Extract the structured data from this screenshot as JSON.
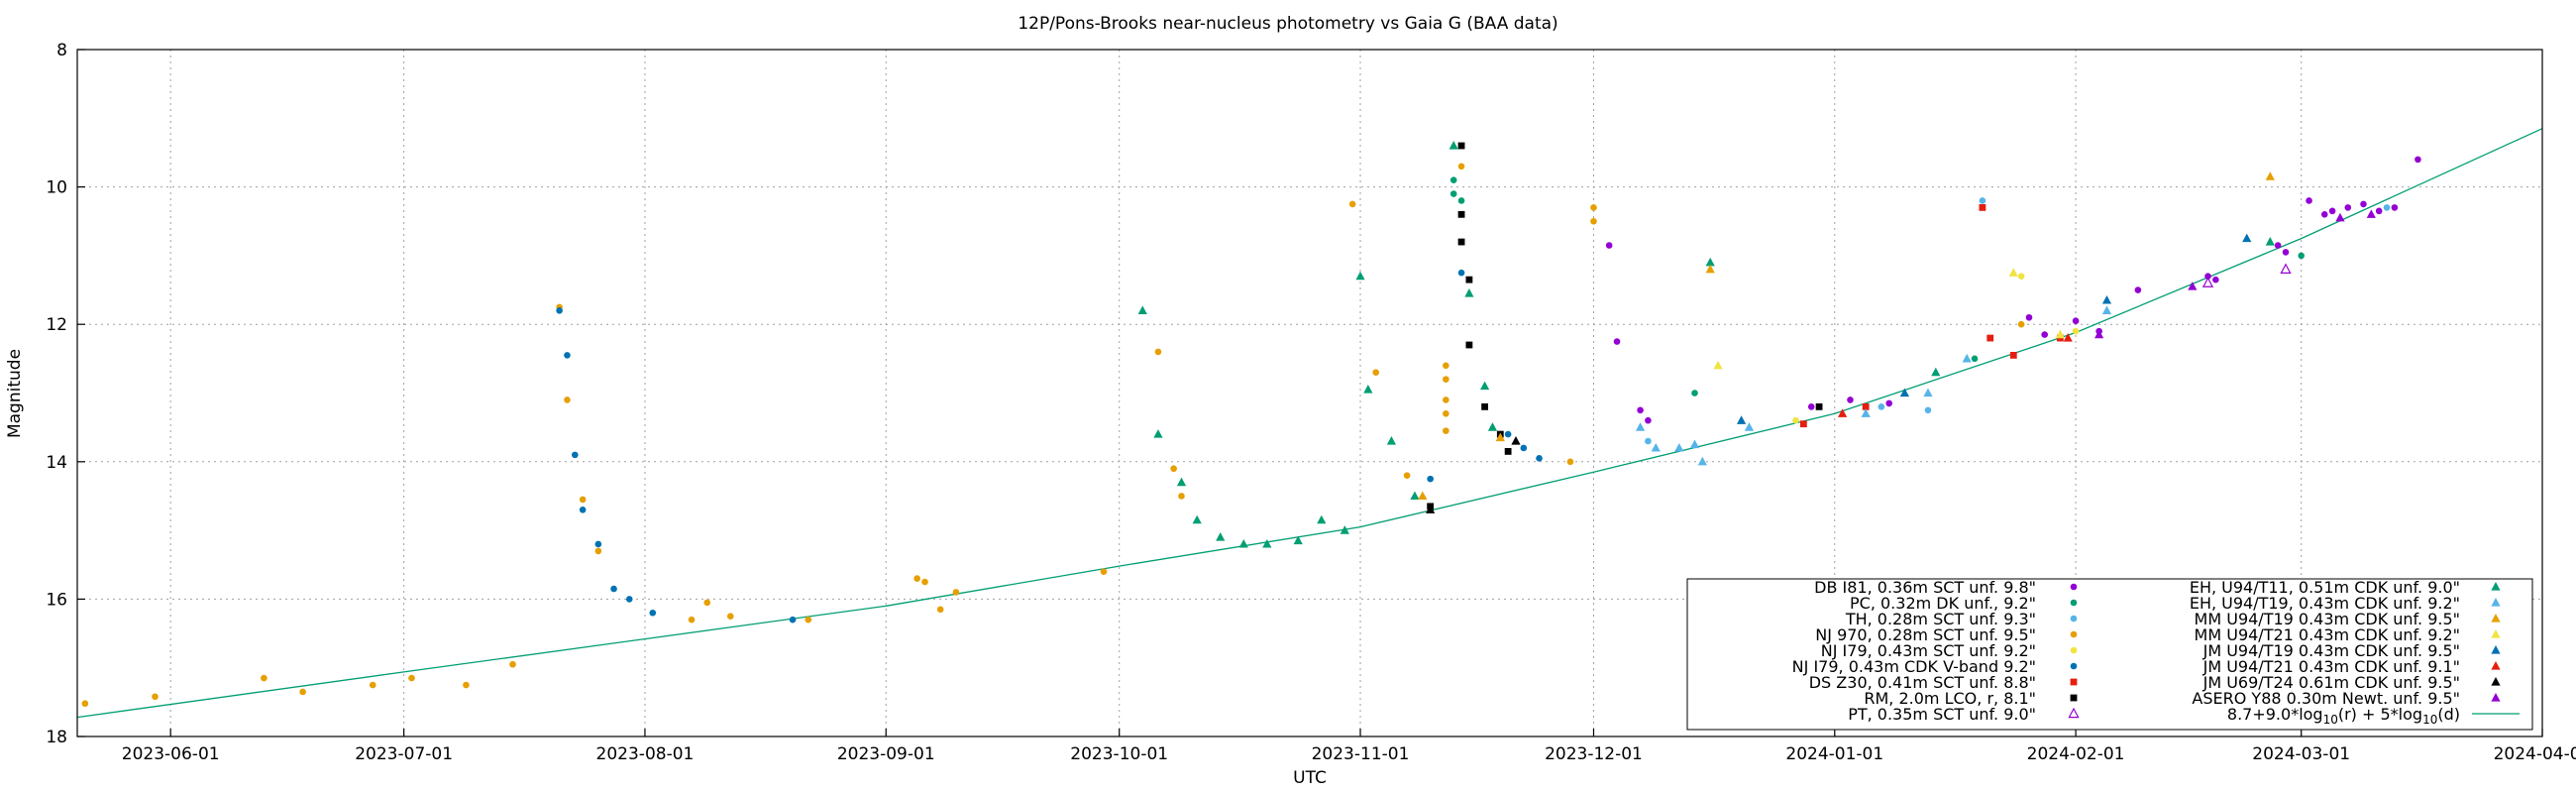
{
  "chart_data": {
    "type": "scatter",
    "title": "12P/Pons-Brooks near-nucleus photometry vs Gaia G (BAA data)",
    "xlabel": "UTC",
    "ylabel": "Magnitude",
    "xlim": [
      "2023-05-20",
      "2024-04-01"
    ],
    "ylim": [
      8,
      18
    ],
    "y_inverted": true,
    "grid": true,
    "legend_position": "bottom-right",
    "x_ticks": [
      {
        "date": "2023-06-01",
        "label": "2023-06-01"
      },
      {
        "date": "2023-07-01",
        "label": "2023-07-01"
      },
      {
        "date": "2023-08-01",
        "label": "2023-08-01"
      },
      {
        "date": "2023-09-01",
        "label": "2023-09-01"
      },
      {
        "date": "2023-10-01",
        "label": "2023-10-01"
      },
      {
        "date": "2023-11-01",
        "label": "2023-11-01"
      },
      {
        "date": "2023-12-01",
        "label": "2023-12-01"
      },
      {
        "date": "2024-01-01",
        "label": "2024-01-01"
      },
      {
        "date": "2024-02-01",
        "label": "2024-02-01"
      },
      {
        "date": "2024-03-01",
        "label": "2024-03-01"
      },
      {
        "date": "2024-04-01",
        "label": "2024-04-01"
      }
    ],
    "y_ticks": [
      8,
      10,
      12,
      14,
      16,
      18
    ],
    "model_curve": {
      "name": "8.7+9.0*log10(r) + 5*log10(d)",
      "color": "#009e73",
      "points": [
        [
          "2023-05-20",
          17.72
        ],
        [
          "2023-07-01",
          17.06
        ],
        [
          "2023-08-01",
          16.58
        ],
        [
          "2023-09-01",
          16.1
        ],
        [
          "2023-10-01",
          15.52
        ],
        [
          "2023-11-01",
          14.95
        ],
        [
          "2023-12-01",
          14.15
        ],
        [
          "2024-01-01",
          13.3
        ],
        [
          "2024-02-01",
          12.12
        ],
        [
          "2024-03-01",
          10.75
        ],
        [
          "2024-04-01",
          9.15
        ]
      ]
    },
    "series": [
      {
        "name": "DB I81, 0.36m SCT unf. 9.8\"",
        "color": "#9400d3",
        "marker": "circle",
        "points": [
          [
            "2023-12-03",
            10.85
          ],
          [
            "2023-12-04",
            12.25
          ],
          [
            "2023-12-07",
            13.25
          ],
          [
            "2023-12-08",
            13.4
          ],
          [
            "2023-12-29",
            13.2
          ],
          [
            "2024-01-03",
            13.1
          ],
          [
            "2024-01-08",
            13.15
          ],
          [
            "2024-01-26",
            11.9
          ],
          [
            "2024-01-28",
            12.15
          ],
          [
            "2024-02-01",
            11.95
          ],
          [
            "2024-02-04",
            12.1
          ],
          [
            "2024-02-09",
            11.5
          ],
          [
            "2024-02-18",
            11.3
          ],
          [
            "2024-02-19",
            11.35
          ],
          [
            "2024-02-27",
            10.85
          ],
          [
            "2024-02-28",
            10.95
          ],
          [
            "2024-03-02",
            10.2
          ],
          [
            "2024-03-04",
            10.4
          ],
          [
            "2024-03-05",
            10.35
          ],
          [
            "2024-03-07",
            10.3
          ],
          [
            "2024-03-09",
            10.25
          ],
          [
            "2024-03-11",
            10.35
          ],
          [
            "2024-03-13",
            10.3
          ],
          [
            "2024-03-16",
            9.6
          ]
        ]
      },
      {
        "name": "PC, 0.32m DK unf., 9.2\"",
        "color": "#009e73",
        "marker": "circle",
        "points": [
          [
            "2023-11-13",
            9.9
          ],
          [
            "2023-11-13",
            10.1
          ],
          [
            "2023-11-14",
            10.2
          ],
          [
            "2023-12-14",
            13.0
          ],
          [
            "2024-01-19",
            12.5
          ],
          [
            "2024-03-01",
            11.0
          ]
        ]
      },
      {
        "name": "TH, 0.28m SCT unf. 9.3\"",
        "color": "#56b4e9",
        "marker": "circle",
        "points": [
          [
            "2023-12-08",
            13.7
          ],
          [
            "2024-01-20",
            10.2
          ],
          [
            "2024-01-07",
            13.2
          ],
          [
            "2024-01-13",
            13.25
          ],
          [
            "2024-03-12",
            10.3
          ]
        ]
      },
      {
        "name": "NJ 970, 0.28m SCT unf. 9.5\"",
        "color": "#e69f00",
        "marker": "circle",
        "points": [
          [
            "2023-05-21",
            17.52
          ],
          [
            "2023-05-30",
            17.42
          ],
          [
            "2023-06-13",
            17.15
          ],
          [
            "2023-06-18",
            17.35
          ],
          [
            "2023-06-27",
            17.25
          ],
          [
            "2023-07-02",
            17.15
          ],
          [
            "2023-07-09",
            17.25
          ],
          [
            "2023-07-15",
            16.95
          ],
          [
            "2023-07-21",
            11.75
          ],
          [
            "2023-07-22",
            13.1
          ],
          [
            "2023-07-24",
            14.55
          ],
          [
            "2023-07-26",
            15.3
          ],
          [
            "2023-08-07",
            16.3
          ],
          [
            "2023-08-09",
            16.05
          ],
          [
            "2023-08-12",
            16.25
          ],
          [
            "2023-08-22",
            16.3
          ],
          [
            "2023-09-05",
            15.7
          ],
          [
            "2023-09-06",
            15.75
          ],
          [
            "2023-09-08",
            16.15
          ],
          [
            "2023-09-10",
            15.9
          ],
          [
            "2023-09-29",
            15.6
          ],
          [
            "2023-10-06",
            12.4
          ],
          [
            "2023-10-08",
            14.1
          ],
          [
            "2023-10-09",
            14.5
          ],
          [
            "2023-10-31",
            10.25
          ],
          [
            "2023-11-03",
            12.7
          ],
          [
            "2023-11-07",
            14.2
          ],
          [
            "2023-11-12",
            13.55
          ],
          [
            "2023-11-12",
            13.3
          ],
          [
            "2023-11-12",
            13.1
          ],
          [
            "2023-11-12",
            12.8
          ],
          [
            "2023-11-12",
            12.6
          ],
          [
            "2023-11-14",
            9.7
          ],
          [
            "2023-11-28",
            14.0
          ],
          [
            "2023-12-01",
            10.3
          ],
          [
            "2023-12-01",
            10.5
          ],
          [
            "2024-01-25",
            12.0
          ]
        ]
      },
      {
        "name": "NJ I79, 0.43m SCT unf. 9.2\"",
        "color": "#f0e442",
        "marker": "circle",
        "points": [
          [
            "2023-12-27",
            13.4
          ],
          [
            "2024-01-25",
            11.3
          ],
          [
            "2024-02-01",
            12.1
          ]
        ]
      },
      {
        "name": "NJ I79, 0.43m CDK V-band 9.2\"",
        "color": "#0072b2",
        "marker": "circle",
        "points": [
          [
            "2023-07-21",
            11.8
          ],
          [
            "2023-07-22",
            12.45
          ],
          [
            "2023-07-23",
            13.9
          ],
          [
            "2023-07-24",
            14.7
          ],
          [
            "2023-07-26",
            15.2
          ],
          [
            "2023-07-28",
            15.85
          ],
          [
            "2023-07-30",
            16.0
          ],
          [
            "2023-08-02",
            16.2
          ],
          [
            "2023-08-20",
            16.3
          ],
          [
            "2023-11-10",
            14.25
          ],
          [
            "2023-11-14",
            11.25
          ],
          [
            "2023-11-20",
            13.6
          ],
          [
            "2023-11-22",
            13.8
          ],
          [
            "2023-11-24",
            13.95
          ]
        ]
      },
      {
        "name": "DS Z30, 0.41m SCT unf. 8.8\"",
        "color": "#e51e10",
        "marker": "square",
        "points": [
          [
            "2023-12-28",
            13.45
          ],
          [
            "2024-01-05",
            13.2
          ],
          [
            "2024-01-20",
            10.3
          ],
          [
            "2024-01-21",
            12.2
          ],
          [
            "2024-01-24",
            12.45
          ],
          [
            "2024-01-30",
            12.2
          ]
        ]
      },
      {
        "name": "RM, 2.0m LCO, r, 8.1\"",
        "color": "#000000",
        "marker": "square",
        "points": [
          [
            "2023-11-10",
            14.65
          ],
          [
            "2023-11-14",
            9.4
          ],
          [
            "2023-11-14",
            10.4
          ],
          [
            "2023-11-14",
            10.8
          ],
          [
            "2023-11-15",
            11.35
          ],
          [
            "2023-11-15",
            12.3
          ],
          [
            "2023-11-17",
            13.2
          ],
          [
            "2023-11-19",
            13.6
          ],
          [
            "2023-11-20",
            13.85
          ],
          [
            "2023-12-30",
            13.2
          ]
        ]
      },
      {
        "name": "PT, 0.35m SCT unf. 9.0\"",
        "color": "#9400d3",
        "marker": "triangle-open",
        "points": [
          [
            "2024-02-18",
            11.4
          ],
          [
            "2024-02-28",
            11.2
          ]
        ]
      },
      {
        "name": "EH, U94/T11, 0.51m CDK unf. 9.0\"",
        "color": "#009e73",
        "marker": "triangle",
        "points": [
          [
            "2023-10-04",
            11.8
          ],
          [
            "2023-10-06",
            13.6
          ],
          [
            "2023-10-09",
            14.3
          ],
          [
            "2023-10-11",
            14.85
          ],
          [
            "2023-10-14",
            15.1
          ],
          [
            "2023-10-17",
            15.2
          ],
          [
            "2023-10-20",
            15.2
          ],
          [
            "2023-10-24",
            15.15
          ],
          [
            "2023-10-27",
            14.85
          ],
          [
            "2023-10-30",
            15.0
          ],
          [
            "2023-11-01",
            11.3
          ],
          [
            "2023-11-02",
            12.95
          ],
          [
            "2023-11-05",
            13.7
          ],
          [
            "2023-11-08",
            14.5
          ],
          [
            "2023-11-13",
            9.4
          ],
          [
            "2023-11-15",
            11.55
          ],
          [
            "2023-11-17",
            12.9
          ],
          [
            "2023-11-18",
            13.5
          ],
          [
            "2023-12-16",
            11.1
          ],
          [
            "2024-01-14",
            12.7
          ],
          [
            "2024-02-26",
            10.8
          ]
        ]
      },
      {
        "name": "EH, U94/T19, 0.43m CDK unf. 9.2\"",
        "color": "#56b4e9",
        "marker": "triangle",
        "points": [
          [
            "2023-12-07",
            13.5
          ],
          [
            "2023-12-09",
            13.8
          ],
          [
            "2023-12-12",
            13.8
          ],
          [
            "2023-12-14",
            13.75
          ],
          [
            "2023-12-15",
            14.0
          ],
          [
            "2023-12-21",
            13.5
          ],
          [
            "2024-01-05",
            13.3
          ],
          [
            "2024-01-13",
            13.0
          ],
          [
            "2024-01-18",
            12.5
          ],
          [
            "2024-02-05",
            11.8
          ]
        ]
      },
      {
        "name": "MM U94/T19 0.43m CDK unf. 9.5\"",
        "color": "#e69f00",
        "marker": "triangle",
        "points": [
          [
            "2023-11-09",
            14.5
          ],
          [
            "2023-11-19",
            13.65
          ],
          [
            "2023-12-16",
            11.2
          ],
          [
            "2024-02-26",
            9.85
          ]
        ]
      },
      {
        "name": "MM U94/T21 0.43m CDK unf. 9.2\"",
        "color": "#f0e442",
        "marker": "triangle",
        "points": [
          [
            "2023-12-17",
            12.6
          ],
          [
            "2024-01-24",
            11.25
          ],
          [
            "2024-01-30",
            12.15
          ]
        ]
      },
      {
        "name": "JM U94/T19 0.43m CDK unf. 9.5\"",
        "color": "#0072b2",
        "marker": "triangle",
        "points": [
          [
            "2023-12-20",
            13.4
          ],
          [
            "2024-01-10",
            13.0
          ],
          [
            "2024-02-05",
            11.65
          ],
          [
            "2024-02-23",
            10.75
          ]
        ]
      },
      {
        "name": "JM U94/T21 0.43m CDK unf. 9.1\"",
        "color": "#e51e10",
        "marker": "triangle",
        "points": [
          [
            "2024-01-02",
            13.3
          ],
          [
            "2024-01-31",
            12.2
          ]
        ]
      },
      {
        "name": "JM U69/T24 0.61m CDK unf. 9.5\"",
        "color": "#000000",
        "marker": "triangle",
        "points": [
          [
            "2023-11-10",
            14.7
          ],
          [
            "2023-11-21",
            13.7
          ]
        ]
      },
      {
        "name": "ASERO Y88 0.30m Newt. unf. 9.5\"",
        "color": "#9400d3",
        "marker": "triangle",
        "points": [
          [
            "2024-02-04",
            12.15
          ],
          [
            "2024-02-16",
            11.45
          ],
          [
            "2024-03-06",
            10.45
          ],
          [
            "2024-03-10",
            10.4
          ]
        ]
      }
    ]
  }
}
